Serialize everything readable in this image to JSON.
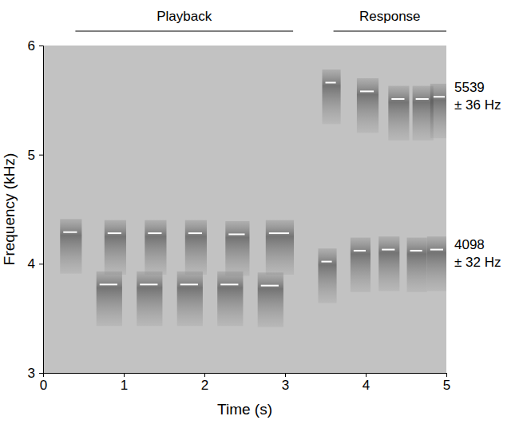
{
  "chart_data": {
    "type": "spectrogram",
    "x_label": "Time (s)",
    "y_label": "Frequency (kHz)",
    "xlim": [
      0,
      5
    ],
    "ylim": [
      3,
      6
    ],
    "xticks": [
      0,
      1,
      2,
      3,
      4,
      5
    ],
    "yticks": [
      3,
      4,
      5,
      6
    ],
    "series": [
      {
        "start": [
          0.25,
          0.8,
          1.3,
          1.8,
          2.3,
          2.8
        ],
        "end": [
          0.42,
          0.97,
          1.47,
          1.97,
          2.5,
          3.05
        ],
        "values": [
          4.29,
          4.28,
          4.28,
          4.28,
          4.27,
          4.28
        ]
      },
      {
        "start": [
          0.7,
          1.2,
          1.7,
          2.2,
          2.7
        ],
        "end": [
          0.92,
          1.42,
          1.92,
          2.42,
          2.92
        ],
        "values": [
          3.81,
          3.81,
          3.81,
          3.81,
          3.8
        ]
      },
      {
        "start": [
          3.45,
          3.85,
          4.2,
          4.55,
          4.8
        ],
        "end": [
          3.58,
          4.0,
          4.36,
          4.7,
          4.96
        ],
        "values": [
          4.02,
          4.12,
          4.13,
          4.12,
          4.13
        ]
      },
      {
        "start": [
          3.5,
          3.93,
          4.32,
          4.62,
          4.84
        ],
        "end": [
          3.63,
          4.1,
          4.48,
          4.78,
          4.98
        ],
        "values": [
          5.66,
          5.58,
          5.51,
          5.51,
          5.53
        ]
      }
    ],
    "annotations": [
      {
        "text": "Playback",
        "x0": 0.4,
        "x1": 3.1
      },
      {
        "text": "Response",
        "x0": 3.6,
        "x1": 5.0
      },
      {
        "text": [
          "5539",
          "± 36 Hz"
        ],
        "y": 5.539
      },
      {
        "text": [
          "4098",
          "± 32 Hz"
        ],
        "y": 4.098
      }
    ]
  }
}
